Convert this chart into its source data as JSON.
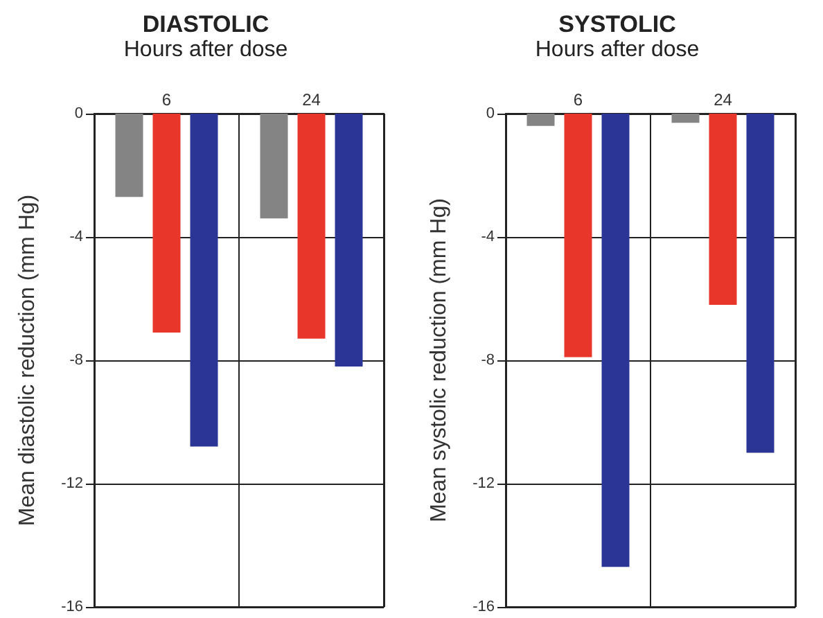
{
  "chart_data": [
    {
      "type": "bar",
      "title": "DIASTOLIC",
      "xlabel": "Hours after dose",
      "ylabel": "Mean diastolic reduction (mm Hg)",
      "categories": [
        "6",
        "24"
      ],
      "series": [
        {
          "color": "#848484",
          "values": [
            -2.7,
            -3.4
          ]
        },
        {
          "color": "#e8372a",
          "values": [
            -7.1,
            -7.3
          ]
        },
        {
          "color": "#2b3595",
          "values": [
            -10.8,
            -8.2
          ]
        }
      ],
      "ylim": [
        -16,
        0
      ],
      "yticks": [
        -16,
        -12,
        -8,
        -4,
        0
      ],
      "grid": true
    },
    {
      "type": "bar",
      "title": "SYSTOLIC",
      "xlabel": "Hours after dose",
      "ylabel": "Mean systolic reduction (mm Hg)",
      "categories": [
        "6",
        "24"
      ],
      "series": [
        {
          "color": "#848484",
          "values": [
            -0.4,
            -0.3
          ]
        },
        {
          "color": "#e8372a",
          "values": [
            -7.9,
            -6.2
          ]
        },
        {
          "color": "#2b3595",
          "values": [
            -14.7,
            -11.0
          ]
        }
      ],
      "ylim": [
        -16,
        0
      ],
      "yticks": [
        -16,
        -12,
        -8,
        -4,
        0
      ],
      "grid": true
    }
  ]
}
